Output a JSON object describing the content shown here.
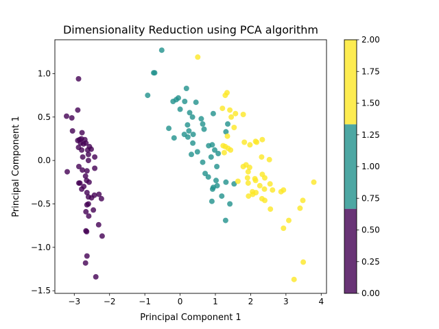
{
  "chart_data": {
    "type": "scatter",
    "title": "Dimensionality Reduction using PCA algorithm",
    "xlabel": "Principal Component 1",
    "ylabel": "Principal Component 1",
    "xlim": [
      -3.55,
      4.15
    ],
    "ylim": [
      -1.53,
      1.39
    ],
    "xticks": [
      -3,
      -2,
      -1,
      0,
      1,
      2,
      3,
      4
    ],
    "yticks": [
      -1.5,
      -1.0,
      -0.5,
      0.0,
      0.5,
      1.0
    ],
    "xtick_labels": [
      "−3",
      "−2",
      "−1",
      "0",
      "1",
      "2",
      "3",
      "4"
    ],
    "ytick_labels": [
      "−1.5",
      "−1.0",
      "−0.5",
      "0.0",
      "0.5",
      "1.0"
    ],
    "grid": false,
    "colorbar": {
      "range": [
        0.0,
        2.0
      ],
      "ticks": [
        0.0,
        0.25,
        0.5,
        0.75,
        1.0,
        1.25,
        1.5,
        1.75,
        2.0
      ],
      "tick_labels": [
        "0.00",
        "0.25",
        "0.50",
        "0.75",
        "1.00",
        "1.25",
        "1.50",
        "1.75",
        "2.00"
      ],
      "bands": [
        {
          "from": 0.0,
          "to": 0.6667,
          "color": "#440154"
        },
        {
          "from": 0.6667,
          "to": 1.3333,
          "color": "#21918c"
        },
        {
          "from": 1.3333,
          "to": 2.0,
          "color": "#fde725"
        }
      ]
    },
    "series": [
      {
        "color": "#440154",
        "points": [
          [
            -2.88,
            0.94
          ],
          [
            -3.22,
            0.51
          ],
          [
            -3.07,
            0.49
          ],
          [
            -2.9,
            0.58
          ],
          [
            -3.05,
            0.34
          ],
          [
            -2.78,
            0.32
          ],
          [
            -2.9,
            0.23
          ],
          [
            -2.85,
            0.24
          ],
          [
            -2.8,
            0.25
          ],
          [
            -2.7,
            0.24
          ],
          [
            -2.82,
            0.2
          ],
          [
            -2.74,
            0.19
          ],
          [
            -2.67,
            0.2
          ],
          [
            -2.88,
            0.15
          ],
          [
            -2.57,
            0.16
          ],
          [
            -2.52,
            0.13
          ],
          [
            -2.62,
            0.12
          ],
          [
            -2.79,
            0.12
          ],
          [
            -2.6,
            0.07
          ],
          [
            -2.42,
            0.04
          ],
          [
            -2.76,
            0.04
          ],
          [
            -2.6,
            0.0
          ],
          [
            -2.87,
            -0.07
          ],
          [
            -2.42,
            -0.09
          ],
          [
            -2.77,
            -0.11
          ],
          [
            -2.64,
            -0.12
          ],
          [
            -2.68,
            -0.18
          ],
          [
            -2.65,
            -0.23
          ],
          [
            -3.2,
            -0.13
          ],
          [
            -2.58,
            -0.25
          ],
          [
            -2.87,
            -0.26
          ],
          [
            -2.84,
            -0.26
          ],
          [
            -2.73,
            -0.3
          ],
          [
            -2.79,
            -0.33
          ],
          [
            -2.64,
            -0.37
          ],
          [
            -2.6,
            -0.42
          ],
          [
            -2.43,
            -0.4
          ],
          [
            -2.51,
            -0.43
          ],
          [
            -2.3,
            -0.39
          ],
          [
            -2.23,
            -0.44
          ],
          [
            -2.6,
            -0.5
          ],
          [
            -2.64,
            -0.51
          ],
          [
            -2.46,
            -0.57
          ],
          [
            -2.67,
            -0.59
          ],
          [
            -2.59,
            -0.64
          ],
          [
            -2.31,
            -0.74
          ],
          [
            -2.67,
            -0.81
          ],
          [
            -2.65,
            -0.82
          ],
          [
            -2.21,
            -0.87
          ],
          [
            -2.64,
            -1.1
          ],
          [
            -2.68,
            -1.18
          ],
          [
            -2.39,
            -1.34
          ]
        ]
      },
      {
        "color": "#21918c",
        "points": [
          [
            -0.52,
            1.27
          ],
          [
            -0.72,
            1.01
          ],
          [
            -0.75,
            1.01
          ],
          [
            -0.92,
            0.75
          ],
          [
            0.18,
            0.83
          ],
          [
            -0.05,
            0.72
          ],
          [
            -0.11,
            0.7
          ],
          [
            -0.2,
            0.68
          ],
          [
            0.13,
            0.68
          ],
          [
            0.45,
            0.67
          ],
          [
            0.0,
            0.59
          ],
          [
            0.27,
            0.55
          ],
          [
            0.35,
            0.5
          ],
          [
            0.6,
            0.48
          ],
          [
            0.94,
            0.54
          ],
          [
            1.35,
            0.42
          ],
          [
            0.64,
            0.42
          ],
          [
            0.21,
            0.41
          ],
          [
            0.68,
            0.36
          ],
          [
            0.25,
            0.34
          ],
          [
            -0.32,
            0.37
          ],
          [
            0.37,
            0.3
          ],
          [
            0.12,
            0.3
          ],
          [
            0.22,
            0.27
          ],
          [
            1.3,
            0.33
          ],
          [
            0.36,
            0.2
          ],
          [
            -0.17,
            0.26
          ],
          [
            0.81,
            0.17
          ],
          [
            0.91,
            0.18
          ],
          [
            0.98,
            0.12
          ],
          [
            1.08,
            0.08
          ],
          [
            0.32,
            0.07
          ],
          [
            0.49,
            0.1
          ],
          [
            0.88,
            0.04
          ],
          [
            1.04,
            -0.07
          ],
          [
            0.64,
            -0.02
          ],
          [
            0.71,
            -0.15
          ],
          [
            0.8,
            -0.19
          ],
          [
            1.02,
            -0.23
          ],
          [
            1.05,
            -0.29
          ],
          [
            1.3,
            -0.25
          ],
          [
            0.94,
            -0.31
          ],
          [
            0.92,
            -0.33
          ],
          [
            1.53,
            -0.27
          ],
          [
            1.18,
            -0.41
          ],
          [
            0.9,
            -0.47
          ],
          [
            1.41,
            -0.5
          ],
          [
            1.29,
            -0.69
          ]
        ]
      },
      {
        "color": "#fde725",
        "points": [
          [
            0.5,
            1.19
          ],
          [
            1.33,
            0.78
          ],
          [
            1.28,
            0.75
          ],
          [
            1.41,
            0.58
          ],
          [
            1.2,
            0.6
          ],
          [
            1.57,
            0.54
          ],
          [
            1.79,
            0.53
          ],
          [
            1.45,
            0.5
          ],
          [
            1.53,
            0.38
          ],
          [
            1.34,
            0.28
          ],
          [
            1.82,
            0.21
          ],
          [
            2.14,
            0.22
          ],
          [
            2.17,
            0.21
          ],
          [
            2.33,
            0.24
          ],
          [
            1.98,
            0.18
          ],
          [
            1.22,
            0.17
          ],
          [
            1.28,
            0.16
          ],
          [
            1.36,
            0.14
          ],
          [
            1.43,
            0.12
          ],
          [
            1.25,
            0.09
          ],
          [
            2.31,
            0.04
          ],
          [
            2.53,
            0.01
          ],
          [
            1.87,
            -0.05
          ],
          [
            1.79,
            -0.07
          ],
          [
            1.97,
            -0.08
          ],
          [
            1.93,
            -0.13
          ],
          [
            2.33,
            -0.16
          ],
          [
            1.91,
            -0.2
          ],
          [
            2.12,
            -0.21
          ],
          [
            2.4,
            -0.2
          ],
          [
            2.14,
            -0.23
          ],
          [
            1.64,
            -0.24
          ],
          [
            1.93,
            -0.26
          ],
          [
            2.55,
            -0.27
          ],
          [
            2.26,
            -0.29
          ],
          [
            3.79,
            -0.25
          ],
          [
            2.39,
            -0.33
          ],
          [
            2.62,
            -0.34
          ],
          [
            2.86,
            -0.36
          ],
          [
            2.93,
            -0.34
          ],
          [
            2.05,
            -0.36
          ],
          [
            2.15,
            -0.37
          ],
          [
            2.06,
            -0.39
          ],
          [
            1.94,
            -0.41
          ],
          [
            2.32,
            -0.44
          ],
          [
            2.4,
            -0.46
          ],
          [
            3.48,
            -0.46
          ],
          [
            2.56,
            -0.56
          ],
          [
            3.4,
            -0.55
          ],
          [
            3.08,
            -0.69
          ],
          [
            2.93,
            -0.78
          ],
          [
            3.49,
            -1.17
          ],
          [
            3.23,
            -1.37
          ]
        ]
      }
    ]
  }
}
